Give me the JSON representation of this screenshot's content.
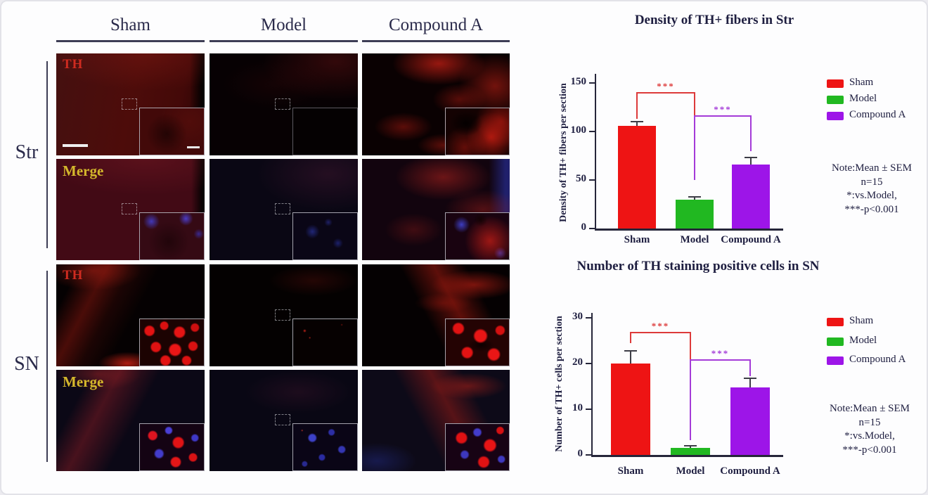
{
  "figure": {
    "columns": [
      "Sham",
      "Model",
      "Compound A"
    ],
    "groups": [
      {
        "label": "Str"
      },
      {
        "label": "SN"
      }
    ],
    "overlays": {
      "th": "TH",
      "merge": "Merge"
    },
    "overlay_colors": {
      "th": "#cf2b20",
      "merge": "#d4b82c"
    }
  },
  "chart_data": [
    {
      "type": "bar",
      "title": "Density of TH+ fibers in Str",
      "ylabel": "Density of TH+ fibers per section",
      "xlabel": "",
      "categories": [
        "Sham",
        "Model",
        "Compound A"
      ],
      "values": [
        106,
        30,
        66
      ],
      "errors": [
        4,
        2.5,
        7
      ],
      "ylim": [
        0,
        150
      ],
      "yticks": [
        0,
        50,
        100,
        150
      ],
      "grid": false,
      "legend_position": "right",
      "legend": [
        {
          "label": "Sham",
          "color": "#ee1414"
        },
        {
          "label": "Model",
          "color": "#21b821"
        },
        {
          "label": "Compound A",
          "color": "#9d15e8"
        }
      ],
      "significance": [
        {
          "from": 0,
          "to": 1,
          "bar_y": 140,
          "left_drop_to": 113,
          "right_drop_to": 116,
          "label": "***",
          "color": "#dd3a3a"
        },
        {
          "from": 1,
          "to": 2,
          "bar_y": 116,
          "left_drop_to": 50,
          "right_drop_to": 80,
          "label": "***",
          "color": "#a43bd8"
        }
      ],
      "note_lines": [
        "Note:Mean ± SEM",
        "n=15",
        "*:vs.Model,",
        "***-p<0.001"
      ]
    },
    {
      "type": "bar",
      "title": "Number of TH staining  positive cells in SN",
      "ylabel": "Number of TH+ cells per section",
      "xlabel": "",
      "categories": [
        "Sham",
        "Model",
        "Compound A"
      ],
      "values": [
        20,
        1.5,
        14.8
      ],
      "errors": [
        2.7,
        0.5,
        2
      ],
      "ylim": [
        0,
        30
      ],
      "yticks": [
        0,
        10,
        20,
        30
      ],
      "grid": false,
      "legend_position": "right",
      "legend": [
        {
          "label": "Sham",
          "color": "#ee1414"
        },
        {
          "label": "Model",
          "color": "#21b821"
        },
        {
          "label": "Compound A",
          "color": "#9d15e8"
        }
      ],
      "significance": [
        {
          "from": 0,
          "to": 1,
          "bar_y": 26.8,
          "left_drop_to": 24.5,
          "right_drop_to": 20.7,
          "label": "***",
          "color": "#dd3a3a"
        },
        {
          "from": 1,
          "to": 2,
          "bar_y": 20.7,
          "left_drop_to": 3.2,
          "right_drop_to": 17.3,
          "label": "***",
          "color": "#a43bd8"
        }
      ],
      "note_lines": [
        "Note:Mean ± SEM",
        "n=15",
        "*:vs.Model,",
        "***-p<0.001"
      ]
    }
  ]
}
